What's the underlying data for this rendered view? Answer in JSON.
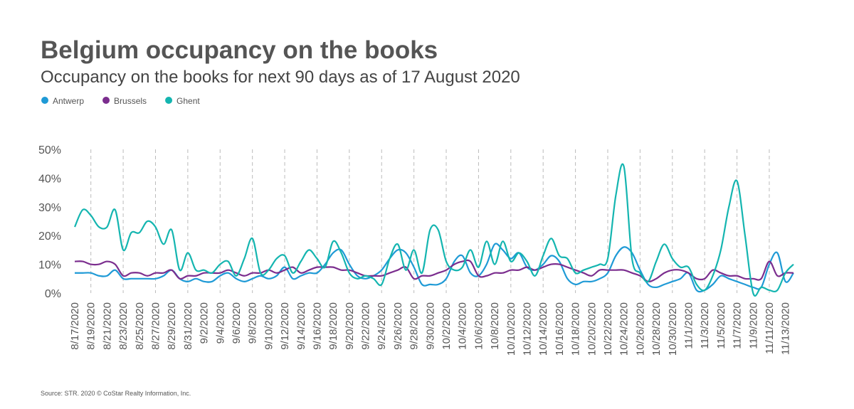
{
  "chart_data": {
    "type": "line",
    "title": "Belgium occupancy on the books",
    "subtitle": "Occupancy on the books for next 90 days as of 17 August 2020",
    "source": "Source: STR. 2020 © CoStar Realty Information, Inc.",
    "categories": [
      "8/17/2020",
      null,
      "8/19/2020",
      null,
      "8/21/2020",
      null,
      "8/23/2020",
      null,
      "8/25/2020",
      null,
      "8/27/2020",
      null,
      "8/29/2020",
      null,
      "8/31/2020",
      null,
      "9/2/2020",
      null,
      "9/4/2020",
      null,
      "9/6/2020",
      null,
      "9/8/2020",
      null,
      "9/10/2020",
      null,
      "9/12/2020",
      null,
      "9/14/2020",
      null,
      "9/16/2020",
      null,
      "9/18/2020",
      null,
      "9/20/2020",
      null,
      "9/22/2020",
      null,
      "9/24/2020",
      null,
      "9/26/2020",
      null,
      "9/28/2020",
      null,
      "9/30/2020",
      null,
      "10/2/2020",
      null,
      "10/4/2020",
      null,
      "10/6/2020",
      null,
      "10/8/2020",
      null,
      "10/10/2020",
      null,
      "10/12/2020",
      null,
      "10/14/2020",
      null,
      "10/16/2020",
      null,
      "10/18/2020",
      null,
      "10/20/2020",
      null,
      "10/22/2020",
      null,
      "10/24/2020",
      null,
      "10/26/2020",
      null,
      "10/28/2020",
      null,
      "10/30/2020",
      null,
      "11/1/2020",
      null,
      "11/3/2020",
      null,
      "11/5/2020",
      null,
      "11/7/2020",
      null,
      "11/9/2020",
      null,
      "11/11/2020",
      null,
      "11/13/2020",
      null
    ],
    "series": [
      {
        "name": "Antwerp",
        "color": "#1f9ad6",
        "values": [
          7,
          7,
          7,
          6,
          6,
          8,
          5,
          5,
          5,
          5,
          5,
          6,
          8,
          5,
          4,
          5,
          4,
          4,
          6,
          7,
          5,
          4,
          5,
          6,
          5,
          6,
          9,
          5,
          6,
          7,
          7,
          10,
          14,
          15,
          10,
          6,
          5,
          6,
          8,
          12,
          15,
          14,
          9,
          3,
          3,
          3,
          5,
          11,
          13,
          7,
          6,
          10,
          17,
          15,
          12,
          14,
          9,
          8,
          10,
          13,
          11,
          5,
          3,
          4,
          4,
          5,
          7,
          13,
          16,
          14,
          8,
          3,
          2,
          3,
          4,
          5,
          7,
          1,
          1,
          3,
          6,
          5,
          4,
          3,
          2,
          2,
          10,
          14,
          4,
          7
        ]
      },
      {
        "name": "Brussels",
        "color": "#7b2d8e",
        "values": [
          11,
          11,
          10,
          10,
          11,
          10,
          6,
          7,
          7,
          6,
          7,
          7,
          8,
          5,
          6,
          6,
          7,
          7,
          7,
          8,
          7,
          6,
          7,
          7,
          8,
          7,
          8,
          9,
          7,
          8,
          9,
          9,
          9,
          8,
          8,
          7,
          6,
          6,
          6,
          7,
          8,
          9,
          5,
          6,
          6,
          7,
          8,
          10,
          11,
          11,
          6,
          6,
          7,
          7,
          8,
          8,
          9,
          8,
          9,
          10,
          10,
          9,
          8,
          7,
          6,
          8,
          8,
          8,
          8,
          7,
          6,
          4,
          5,
          7,
          8,
          8,
          7,
          5,
          5,
          8,
          7,
          6,
          6,
          5,
          5,
          5,
          11,
          6,
          7,
          7
        ]
      },
      {
        "name": "Ghent",
        "color": "#14b5b0",
        "values": [
          23,
          29,
          27,
          23,
          23,
          29,
          15,
          21,
          21,
          25,
          23,
          17,
          22,
          8,
          14,
          8,
          8,
          7,
          10,
          11,
          6,
          12,
          19,
          7,
          8,
          12,
          13,
          7,
          11,
          15,
          12,
          9,
          18,
          14,
          7,
          5,
          6,
          5,
          3,
          12,
          17,
          8,
          15,
          7,
          22,
          22,
          11,
          8,
          9,
          15,
          9,
          18,
          10,
          18,
          11,
          14,
          11,
          6,
          13,
          19,
          13,
          12,
          7,
          8,
          9,
          10,
          12,
          34,
          44,
          12,
          7,
          4,
          11,
          17,
          12,
          9,
          9,
          3,
          1,
          6,
          15,
          30,
          39,
          20,
          0,
          2,
          1,
          1,
          7,
          10
        ]
      }
    ],
    "ylim": [
      0,
      50
    ],
    "yticks": [
      {
        "value": 0,
        "label": "0%"
      },
      {
        "value": 10,
        "label": "10%"
      },
      {
        "value": 20,
        "label": "20%"
      },
      {
        "value": 30,
        "label": "30%"
      },
      {
        "value": 40,
        "label": "40%"
      },
      {
        "value": 50,
        "label": "50%"
      }
    ],
    "grid": true,
    "legend": "top-left"
  }
}
